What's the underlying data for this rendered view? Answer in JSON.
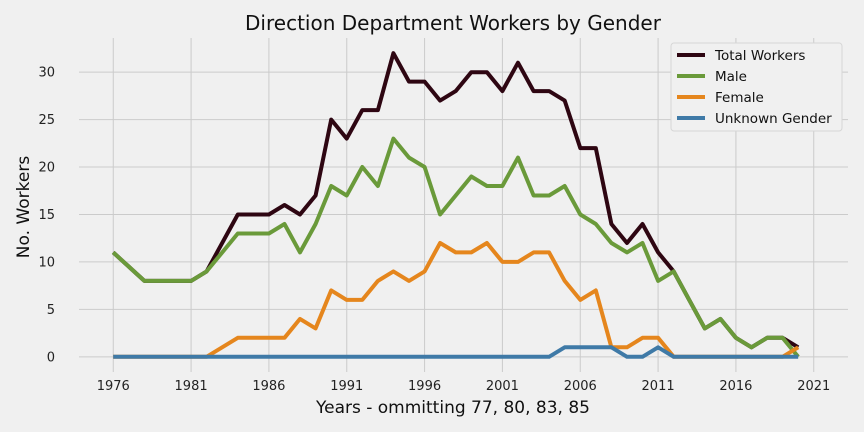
{
  "chart_data": {
    "type": "line",
    "title": "Direction Department Workers by Gender",
    "xlabel": "Years - ommitting 77, 80, 83, 85",
    "ylabel": "No. Workers",
    "xlim": [
      1973.8,
      2023.2
    ],
    "ylim": [
      -1.6,
      33.6
    ],
    "xticks": [
      1976,
      1981,
      1986,
      1991,
      1996,
      2001,
      2006,
      2011,
      2016,
      2021
    ],
    "yticks": [
      0,
      5,
      10,
      15,
      20,
      25,
      30
    ],
    "grid": true,
    "legend_position": "top-right",
    "x": [
      1976,
      1978,
      1979,
      1981,
      1982,
      1984,
      1986,
      1987,
      1988,
      1989,
      1990,
      1991,
      1992,
      1993,
      1994,
      1995,
      1996,
      1997,
      1998,
      1999,
      2000,
      2001,
      2002,
      2003,
      2004,
      2005,
      2006,
      2007,
      2008,
      2009,
      2010,
      2011,
      2012,
      2013,
      2014,
      2015,
      2016,
      2017,
      2018,
      2019,
      2020
    ],
    "series": [
      {
        "name": "Total Workers",
        "color": "#2e0612",
        "values": [
          11,
          8,
          8,
          8,
          9,
          15,
          15,
          16,
          15,
          17,
          25,
          23,
          26,
          26,
          32,
          29,
          29,
          27,
          28,
          30,
          30,
          28,
          31,
          28,
          28,
          27,
          22,
          22,
          14,
          12,
          14,
          11,
          9,
          6,
          3,
          4,
          2,
          1,
          2,
          2,
          1
        ]
      },
      {
        "name": "Male",
        "color": "#6a9a3a",
        "values": [
          11,
          8,
          8,
          8,
          9,
          13,
          13,
          14,
          11,
          14,
          18,
          17,
          20,
          18,
          23,
          21,
          20,
          15,
          17,
          19,
          18,
          18,
          21,
          17,
          17,
          18,
          15,
          14,
          12,
          11,
          12,
          8,
          9,
          6,
          3,
          4,
          2,
          1,
          2,
          2,
          0
        ]
      },
      {
        "name": "Female",
        "color": "#e5861d",
        "values": [
          0,
          0,
          0,
          0,
          0,
          2,
          2,
          2,
          4,
          3,
          7,
          6,
          6,
          8,
          9,
          8,
          9,
          12,
          11,
          11,
          12,
          10,
          10,
          11,
          11,
          8,
          6,
          7,
          1,
          1,
          2,
          2,
          0,
          0,
          0,
          0,
          0,
          0,
          0,
          0,
          1
        ]
      },
      {
        "name": "Unknown Gender",
        "color": "#3f7aa7",
        "values": [
          0,
          0,
          0,
          0,
          0,
          0,
          0,
          0,
          0,
          0,
          0,
          0,
          0,
          0,
          0,
          0,
          0,
          0,
          0,
          0,
          0,
          0,
          0,
          0,
          0,
          1,
          1,
          1,
          1,
          0,
          0,
          1,
          0,
          0,
          0,
          0,
          0,
          0,
          0,
          0,
          0
        ]
      }
    ]
  }
}
